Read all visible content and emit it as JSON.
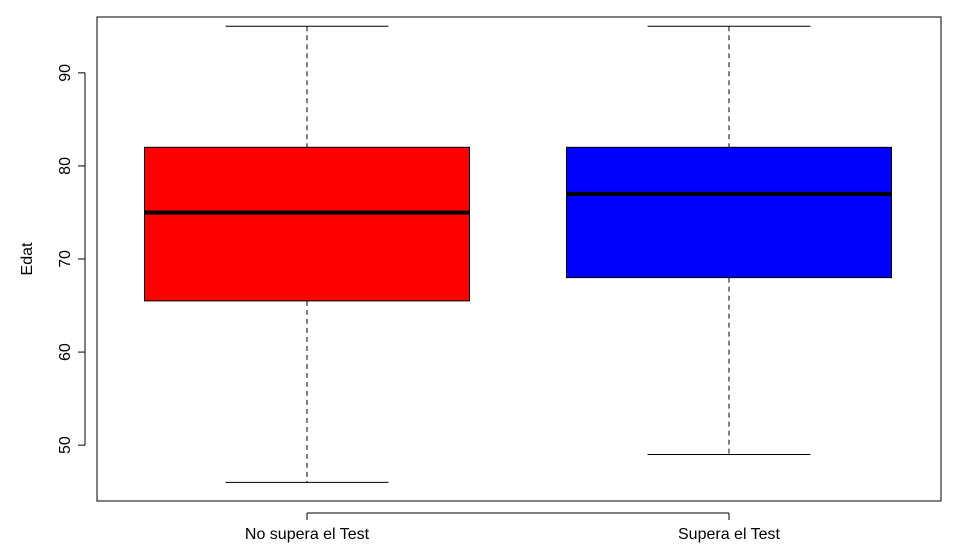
{
  "chart_data": {
    "type": "boxplot",
    "title": "",
    "xlabel": "",
    "ylabel": "Edat",
    "ylim": [
      44,
      96
    ],
    "y_ticks": [
      50,
      60,
      70,
      80,
      90
    ],
    "categories": [
      "No supera el Test",
      "Supera el Test"
    ],
    "boxes": [
      {
        "category": "No supera el Test",
        "min": 46,
        "q1": 65.5,
        "median": 75,
        "q3": 82,
        "max": 95,
        "color": "#ff0000"
      },
      {
        "category": "Supera el Test",
        "min": 49,
        "q1": 68,
        "median": 77,
        "q3": 82,
        "max": 95,
        "color": "#0000ff"
      }
    ],
    "grid": false,
    "legend": "none"
  }
}
